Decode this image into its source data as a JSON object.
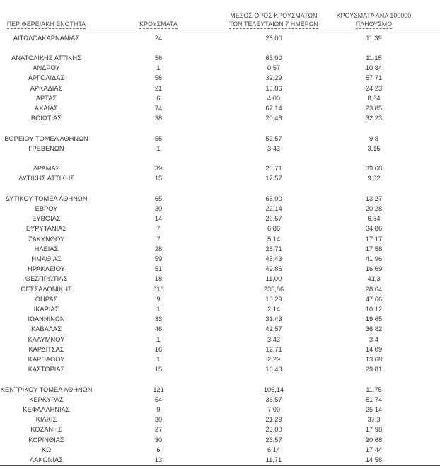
{
  "colors": {
    "text": "#383838",
    "rule": "#4a4a4a",
    "background": "#ffffff"
  },
  "table": {
    "headers": {
      "region": "ΠΕΡΙΦΕΡΕΙΑΚΗ ΕΝΟΤΗΤΑ",
      "cases": "ΚΡΟΥΣΜΑΤΑ",
      "avg7_line1": "ΜΕΣΟΣ ΟΡΟΣ ΚΡΟΥΣΜΑΤΩΝ",
      "avg7_line2": "ΤΩΝ ΤΕΛΕΥΤΑΙΩΝ 7 ΗΜΕΡΩΝ",
      "per100k_line1": "ΚΡΟΥΣΜΑΤΑ ΑΝΑ 100000",
      "per100k_line2": "ΠΛΗΘΥΣΜΟ"
    },
    "rows": [
      {
        "region": "ΑΙΤΩΛΟΑΚΑΡΝΑΝΙΑΣ",
        "cases": "24",
        "avg7": "28,00",
        "per100k": "11,39"
      },
      {
        "spacer": true
      },
      {
        "region": "ΑΝΑΤΟΛΙΚΗΣ ΑΤΤΙΚΗΣ",
        "cases": "56",
        "avg7": "63,00",
        "per100k": "11,15"
      },
      {
        "region": "ΑΝΔΡΟΥ",
        "cases": "1",
        "avg7": "0,57",
        "per100k": "10,84"
      },
      {
        "region": "ΑΡΓΟΛΙΔΑΣ",
        "cases": "56",
        "avg7": "32,29",
        "per100k": "57,71"
      },
      {
        "region": "ΑΡΚΑΔΙΑΣ",
        "cases": "21",
        "avg7": "15,86",
        "per100k": "24,23"
      },
      {
        "region": "ΑΡΤΑΣ",
        "cases": "6",
        "avg7": "4,00",
        "per100k": "8,84"
      },
      {
        "region": "ΑΧΑΪΑΣ",
        "cases": "74",
        "avg7": "67,14",
        "per100k": "23,85"
      },
      {
        "region": "ΒΟΙΩΤΙΑΣ",
        "cases": "38",
        "avg7": "20,43",
        "per100k": "32,23"
      },
      {
        "spacer": true
      },
      {
        "region": "ΒΟΡΕΙΟΥ ΤΟΜΕΑ ΑΘΗΝΩΝ",
        "cases": "55",
        "avg7": "52,57",
        "per100k": "9,3"
      },
      {
        "region": "ΓΡΕΒΕΝΩΝ",
        "cases": "1",
        "avg7": "3,43",
        "per100k": "3,15"
      },
      {
        "spacer": true
      },
      {
        "region": "ΔΡΑΜΑΣ",
        "cases": "39",
        "avg7": "23,71",
        "per100k": "39,68"
      },
      {
        "region": "ΔΥΤΙΚΗΣ ΑΤΤΙΚΗΣ",
        "cases": "15",
        "avg7": "17,57",
        "per100k": "9,32"
      },
      {
        "spacer": true
      },
      {
        "region": "ΔΥΤΙΚΟΥ ΤΟΜΕΑ ΑΘΗΝΩΝ",
        "cases": "65",
        "avg7": "65,00",
        "per100k": "13,27"
      },
      {
        "region": "ΕΒΡΟΥ",
        "cases": "30",
        "avg7": "22,14",
        "per100k": "20,28"
      },
      {
        "region": "ΕΥΒΟΙΑΣ",
        "cases": "14",
        "avg7": "20,57",
        "per100k": "6,64"
      },
      {
        "region": "ΕΥΡΥΤΑΝΙΑΣ",
        "cases": "7",
        "avg7": "6,86",
        "per100k": "34,86"
      },
      {
        "region": "ΖΑΚΥΝΘΟΥ",
        "cases": "7",
        "avg7": "5,14",
        "per100k": "17,17"
      },
      {
        "region": "ΗΛΕΙΑΣ",
        "cases": "28",
        "avg7": "25,71",
        "per100k": "17,58"
      },
      {
        "region": "ΗΜΑΘΙΑΣ",
        "cases": "59",
        "avg7": "45,43",
        "per100k": "41,96"
      },
      {
        "region": "ΗΡΑΚΛΕΙΟΥ",
        "cases": "51",
        "avg7": "49,86",
        "per100k": "16,69"
      },
      {
        "region": "ΘΕΣΠΡΩΤΙΑΣ",
        "cases": "18",
        "avg7": "11,00",
        "per100k": "41,3"
      },
      {
        "region": "ΘΕΣΣΑΛΟΝΙΚΗΣ",
        "cases": "318",
        "avg7": "235,86",
        "per100k": "28,64"
      },
      {
        "region": "ΘΗΡΑΣ",
        "cases": "9",
        "avg7": "10,29",
        "per100k": "47,66"
      },
      {
        "region": "ΙΚΑΡΙΑΣ",
        "cases": "1",
        "avg7": "2,14",
        "per100k": "10,12"
      },
      {
        "region": "ΙΩΑΝΝΙΝΩΝ",
        "cases": "33",
        "avg7": "31,43",
        "per100k": "19,65"
      },
      {
        "region": "ΚΑΒΑΛΑΣ",
        "cases": "46",
        "avg7": "42,57",
        "per100k": "36,82"
      },
      {
        "region": "ΚΑΛΥΜΝΟΥ",
        "cases": "1",
        "avg7": "3,43",
        "per100k": "3,4"
      },
      {
        "region": "ΚΑΡΔΙΤΣΑΣ",
        "cases": "16",
        "avg7": "12,71",
        "per100k": "14,09"
      },
      {
        "region": "ΚΑΡΠΑΘΟΥ",
        "cases": "1",
        "avg7": "2,29",
        "per100k": "13,68"
      },
      {
        "region": "ΚΑΣΤΟΡΙΑΣ",
        "cases": "15",
        "avg7": "16,43",
        "per100k": "29,81"
      },
      {
        "spacer": true
      },
      {
        "region": "ΚΕΝΤΡΙΚΟΥ ΤΟΜΕΑ ΑΘΗΝΩΝ",
        "cases": "121",
        "avg7": "106,14",
        "per100k": "11,75"
      },
      {
        "region": "ΚΕΡΚΥΡΑΣ",
        "cases": "54",
        "avg7": "36,57",
        "per100k": "51,74"
      },
      {
        "region": "ΚΕΦΑΛΛΗΝΙΑΣ",
        "cases": "9",
        "avg7": "7,00",
        "per100k": "25,14"
      },
      {
        "region": "ΚΙΛΚΙΣ",
        "cases": "30",
        "avg7": "21,29",
        "per100k": "37,3"
      },
      {
        "region": "ΚΟΖΑΝΗΣ",
        "cases": "27",
        "avg7": "23,00",
        "per100k": "17,98"
      },
      {
        "region": "ΚΟΡΙΝΘΙΑΣ",
        "cases": "30",
        "avg7": "26,57",
        "per100k": "20,68"
      },
      {
        "region": "ΚΩ",
        "cases": "6",
        "avg7": "6,14",
        "per100k": "17,44"
      },
      {
        "region": "ΛΑΚΩΝΙΑΣ",
        "cases": "13",
        "avg7": "11,71",
        "per100k": "14,58"
      }
    ]
  }
}
